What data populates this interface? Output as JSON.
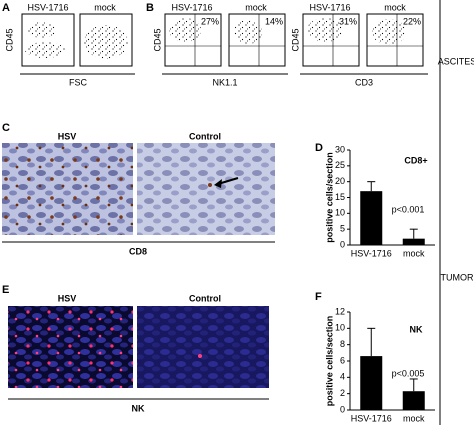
{
  "panels": {
    "a": {
      "label": "A",
      "left_title": "HSV-1716",
      "right_title": "mock",
      "y_axis": "CD45",
      "x_axis": "FSC"
    },
    "b": {
      "label": "B",
      "titles": [
        "HSV-1716",
        "mock",
        "HSV-1716",
        "mock"
      ],
      "percents": [
        "27%",
        "14%",
        "31%",
        "22%"
      ],
      "y_axis_1": "CD45",
      "x_axis_1": "NK1.1",
      "y_axis_2": "CD45",
      "x_axis_2": "CD3",
      "side": "ASCITES"
    },
    "c": {
      "label": "C",
      "left_title": "HSV",
      "right_title": "Control",
      "stain": "CD8"
    },
    "d": {
      "label": "D"
    },
    "e": {
      "label": "E",
      "left_title": "HSV",
      "right_title": "Control",
      "stain": "NK"
    },
    "f": {
      "label": "F"
    },
    "side": "TUMOR"
  },
  "chart_data": [
    {
      "type": "bar",
      "title": "CD8+",
      "annotation": "p<0.001",
      "y_label": "positive cells/section",
      "categories": [
        "HSV-1716",
        "mock"
      ],
      "values": [
        17,
        2
      ],
      "errors": [
        3,
        3
      ],
      "color": "#000000",
      "ylim": [
        0,
        30
      ],
      "yticks": [
        0,
        5,
        10,
        15,
        20,
        25,
        30
      ]
    },
    {
      "type": "bar",
      "title": "NK",
      "annotation": "p<0.005",
      "y_label": "positive cells/section",
      "categories": [
        "HSV-1716",
        "mock"
      ],
      "values": [
        6.6,
        2.3
      ],
      "errors": [
        3.4,
        1.5
      ],
      "color": "#000000",
      "ylim": [
        0,
        12
      ],
      "yticks": [
        0,
        2,
        4,
        6,
        8,
        10,
        12
      ]
    }
  ]
}
